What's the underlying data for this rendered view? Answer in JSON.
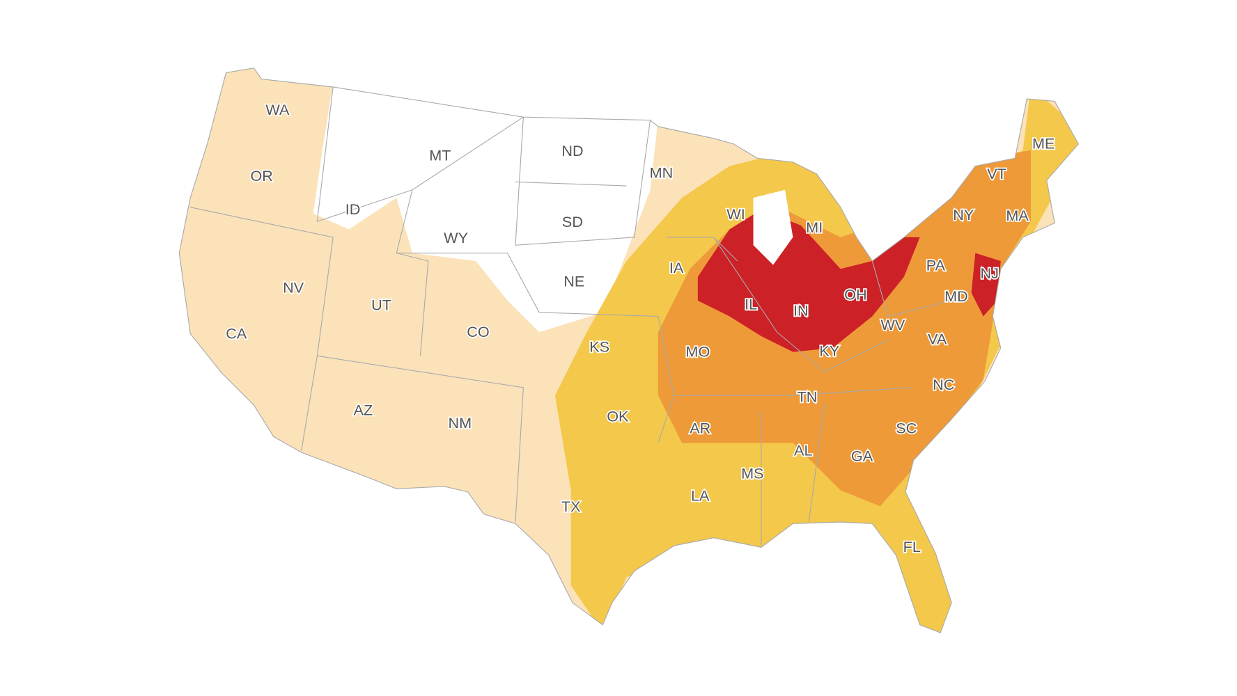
{
  "states": [
    "WA",
    "OR",
    "CA",
    "ID",
    "NV",
    "MT",
    "WY",
    "UT",
    "CO",
    "AZ",
    "NM",
    "ND",
    "SD",
    "NE",
    "KS",
    "OK",
    "TX",
    "MN",
    "IA",
    "MO",
    "AR",
    "LA",
    "WI",
    "MI",
    "IL",
    "IN",
    "OH",
    "KY",
    "TN",
    "MS",
    "AL",
    "GA",
    "FL",
    "SC",
    "NC",
    "VA",
    "WV",
    "MD",
    "PA",
    "NJ",
    "NY",
    "VT",
    "MA",
    "ME"
  ]
}
